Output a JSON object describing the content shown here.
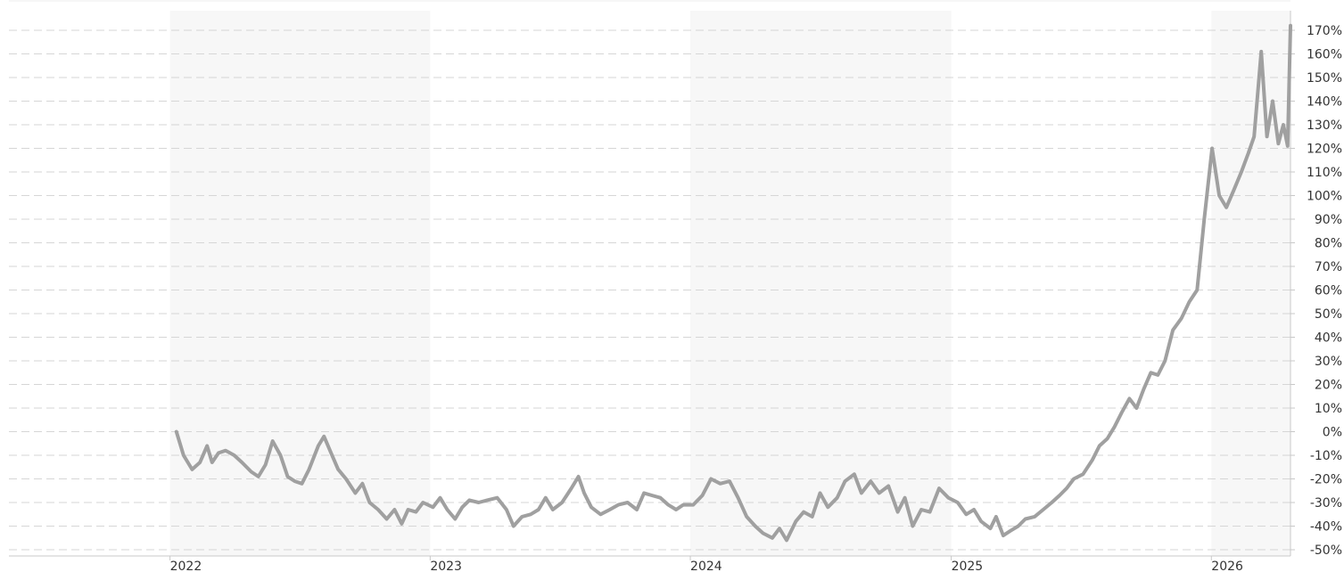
{
  "colors": {
    "line": "#a0a0a0",
    "band": "#f7f7f7",
    "grid": "#d6d6d6",
    "axis": "#c8c8c8",
    "text": "#333333"
  },
  "chart_data": {
    "type": "line",
    "title": "",
    "xlabel": "",
    "ylabel": "",
    "x_axis": {
      "type": "date",
      "min": "2021-05-20",
      "max": "2026-04-22",
      "tick_labels": [
        "2022",
        "2023",
        "2024",
        "2025",
        "2026"
      ]
    },
    "y_axis": {
      "position": "right",
      "unit": "%",
      "min": -50,
      "max": 170,
      "step": 10,
      "tick_labels": [
        "170%",
        "160%",
        "150%",
        "140%",
        "130%",
        "120%",
        "110%",
        "100%",
        "90%",
        "80%",
        "70%",
        "60%",
        "50%",
        "40%",
        "30%",
        "20%",
        "10%",
        "0%",
        "-10%",
        "-20%",
        "-30%",
        "-40%",
        "-50%"
      ]
    },
    "grid": true,
    "legend": "none",
    "alternating_year_bands": [
      "2022",
      "2024",
      "2026"
    ],
    "series": [
      {
        "points": [
          [
            "2022-01-10",
            0
          ],
          [
            "2022-01-20",
            -10
          ],
          [
            "2022-02-01",
            -16
          ],
          [
            "2022-02-12",
            -13
          ],
          [
            "2022-02-22",
            -6
          ],
          [
            "2022-03-01",
            -13
          ],
          [
            "2022-03-10",
            -9
          ],
          [
            "2022-03-20",
            -8
          ],
          [
            "2022-04-01",
            -10
          ],
          [
            "2022-04-12",
            -13
          ],
          [
            "2022-04-25",
            -17
          ],
          [
            "2022-05-05",
            -19
          ],
          [
            "2022-05-15",
            -14
          ],
          [
            "2022-05-25",
            -4
          ],
          [
            "2022-06-05",
            -10
          ],
          [
            "2022-06-15",
            -19
          ],
          [
            "2022-06-25",
            -21
          ],
          [
            "2022-07-05",
            -22
          ],
          [
            "2022-07-15",
            -16
          ],
          [
            "2022-07-28",
            -6
          ],
          [
            "2022-08-05",
            -2
          ],
          [
            "2022-08-15",
            -9
          ],
          [
            "2022-08-25",
            -16
          ],
          [
            "2022-09-05",
            -20
          ],
          [
            "2022-09-18",
            -26
          ],
          [
            "2022-09-28",
            -22
          ],
          [
            "2022-10-08",
            -30
          ],
          [
            "2022-10-20",
            -33
          ],
          [
            "2022-11-01",
            -37
          ],
          [
            "2022-11-12",
            -33
          ],
          [
            "2022-11-22",
            -39
          ],
          [
            "2022-12-01",
            -33
          ],
          [
            "2022-12-12",
            -34
          ],
          [
            "2022-12-22",
            -30
          ],
          [
            "2023-01-05",
            -32
          ],
          [
            "2023-01-15",
            -28
          ],
          [
            "2023-01-25",
            -33
          ],
          [
            "2023-02-05",
            -37
          ],
          [
            "2023-02-15",
            -32
          ],
          [
            "2023-02-25",
            -29
          ],
          [
            "2023-03-10",
            -30
          ],
          [
            "2023-03-22",
            -29
          ],
          [
            "2023-04-05",
            -28
          ],
          [
            "2023-04-18",
            -33
          ],
          [
            "2023-04-28",
            -40
          ],
          [
            "2023-05-10",
            -36
          ],
          [
            "2023-05-22",
            -35
          ],
          [
            "2023-06-02",
            -33
          ],
          [
            "2023-06-12",
            -28
          ],
          [
            "2023-06-22",
            -33
          ],
          [
            "2023-07-05",
            -30
          ],
          [
            "2023-07-18",
            -24
          ],
          [
            "2023-07-28",
            -19
          ],
          [
            "2023-08-05",
            -26
          ],
          [
            "2023-08-15",
            -32
          ],
          [
            "2023-08-28",
            -35
          ],
          [
            "2023-09-10",
            -33
          ],
          [
            "2023-09-22",
            -31
          ],
          [
            "2023-10-05",
            -30
          ],
          [
            "2023-10-18",
            -33
          ],
          [
            "2023-10-28",
            -26
          ],
          [
            "2023-11-08",
            -27
          ],
          [
            "2023-11-20",
            -28
          ],
          [
            "2023-12-01",
            -31
          ],
          [
            "2023-12-12",
            -33
          ],
          [
            "2023-12-22",
            -31
          ],
          [
            "2024-01-05",
            -31
          ],
          [
            "2024-01-18",
            -27
          ],
          [
            "2024-01-30",
            -20
          ],
          [
            "2024-02-12",
            -22
          ],
          [
            "2024-02-25",
            -21
          ],
          [
            "2024-03-08",
            -28
          ],
          [
            "2024-03-20",
            -36
          ],
          [
            "2024-04-01",
            -40
          ],
          [
            "2024-04-12",
            -43
          ],
          [
            "2024-04-25",
            -45
          ],
          [
            "2024-05-05",
            -41
          ],
          [
            "2024-05-15",
            -46
          ],
          [
            "2024-05-28",
            -38
          ],
          [
            "2024-06-08",
            -34
          ],
          [
            "2024-06-20",
            -36
          ],
          [
            "2024-07-01",
            -26
          ],
          [
            "2024-07-12",
            -32
          ],
          [
            "2024-07-25",
            -28
          ],
          [
            "2024-08-05",
            -21
          ],
          [
            "2024-08-18",
            -18
          ],
          [
            "2024-08-28",
            -26
          ],
          [
            "2024-09-10",
            -21
          ],
          [
            "2024-09-22",
            -26
          ],
          [
            "2024-10-05",
            -23
          ],
          [
            "2024-10-18",
            -34
          ],
          [
            "2024-10-28",
            -28
          ],
          [
            "2024-11-08",
            -40
          ],
          [
            "2024-11-20",
            -33
          ],
          [
            "2024-12-02",
            -34
          ],
          [
            "2024-12-15",
            -24
          ],
          [
            "2024-12-28",
            -28
          ],
          [
            "2025-01-10",
            -30
          ],
          [
            "2025-01-22",
            -35
          ],
          [
            "2025-02-02",
            -33
          ],
          [
            "2025-02-12",
            -38
          ],
          [
            "2025-02-25",
            -41
          ],
          [
            "2025-03-05",
            -36
          ],
          [
            "2025-03-15",
            -44
          ],
          [
            "2025-03-25",
            -42
          ],
          [
            "2025-04-05",
            -40
          ],
          [
            "2025-04-15",
            -37
          ],
          [
            "2025-04-28",
            -36
          ],
          [
            "2025-05-10",
            -33
          ],
          [
            "2025-05-22",
            -30
          ],
          [
            "2025-06-02",
            -27
          ],
          [
            "2025-06-12",
            -24
          ],
          [
            "2025-06-22",
            -20
          ],
          [
            "2025-07-05",
            -18
          ],
          [
            "2025-07-18",
            -12
          ],
          [
            "2025-07-28",
            -6
          ],
          [
            "2025-08-08",
            -3
          ],
          [
            "2025-08-18",
            2
          ],
          [
            "2025-08-28",
            8
          ],
          [
            "2025-09-08",
            14
          ],
          [
            "2025-09-18",
            10
          ],
          [
            "2025-09-28",
            18
          ],
          [
            "2025-10-08",
            25
          ],
          [
            "2025-10-18",
            24
          ],
          [
            "2025-10-28",
            30
          ],
          [
            "2025-11-08",
            43
          ],
          [
            "2025-11-20",
            48
          ],
          [
            "2025-12-01",
            55
          ],
          [
            "2025-12-12",
            60
          ],
          [
            "2025-12-22",
            90
          ],
          [
            "2026-01-02",
            120
          ],
          [
            "2026-01-12",
            100
          ],
          [
            "2026-01-22",
            95
          ],
          [
            "2026-02-01",
            102
          ],
          [
            "2026-02-12",
            110
          ],
          [
            "2026-02-22",
            118
          ],
          [
            "2026-03-02",
            125
          ],
          [
            "2026-03-12",
            161
          ],
          [
            "2026-03-20",
            125
          ],
          [
            "2026-03-28",
            140
          ],
          [
            "2026-04-05",
            122
          ],
          [
            "2026-04-12",
            130
          ],
          [
            "2026-04-18",
            121
          ],
          [
            "2026-04-22",
            172
          ]
        ]
      }
    ]
  }
}
